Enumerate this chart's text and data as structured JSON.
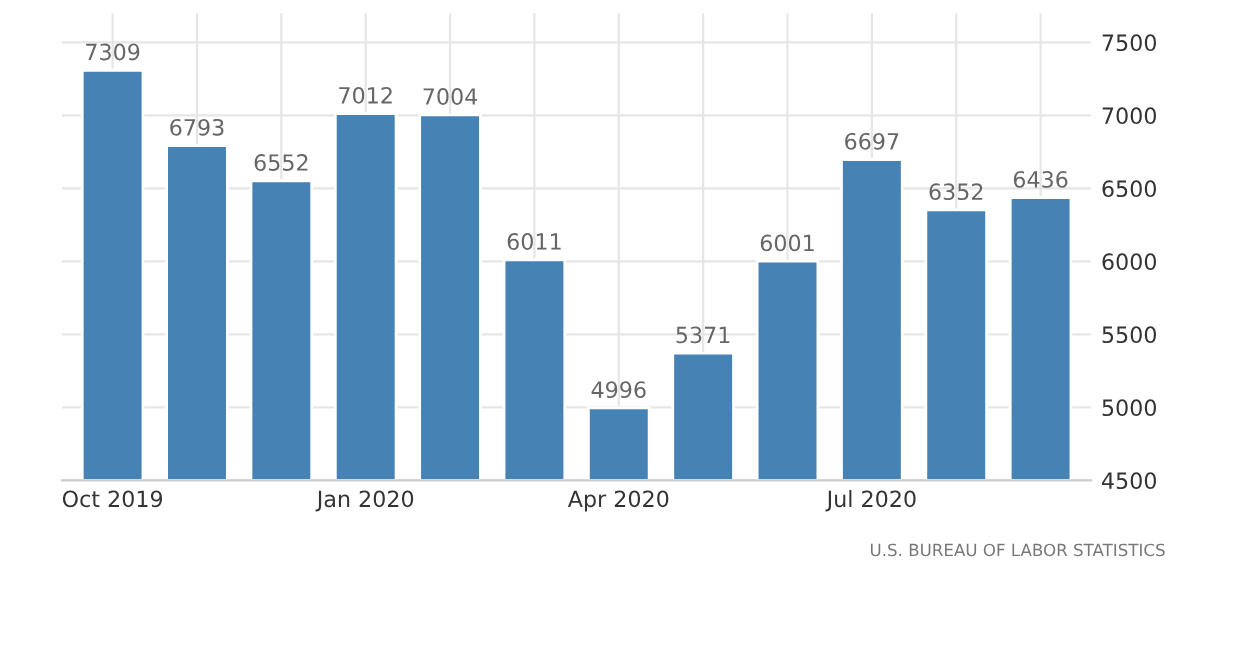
{
  "chart_data": {
    "type": "bar",
    "categories": [
      "Oct 2019",
      null,
      null,
      "Jan 2020",
      null,
      null,
      "Apr 2020",
      null,
      null,
      "Jul 2020",
      null,
      null
    ],
    "values": [
      7309,
      6793,
      6552,
      7012,
      7004,
      6011,
      4996,
      5371,
      6001,
      6697,
      6352,
      6436
    ],
    "color": "#4682b4",
    "data_labels": true,
    "ylim": [
      4500,
      7700
    ],
    "yticks": [
      4500,
      5000,
      5500,
      6000,
      6500,
      7000,
      7500
    ],
    "grid": true,
    "annotations": [
      "U.S. BUREAU OF LABOR STATISTICS"
    ]
  }
}
